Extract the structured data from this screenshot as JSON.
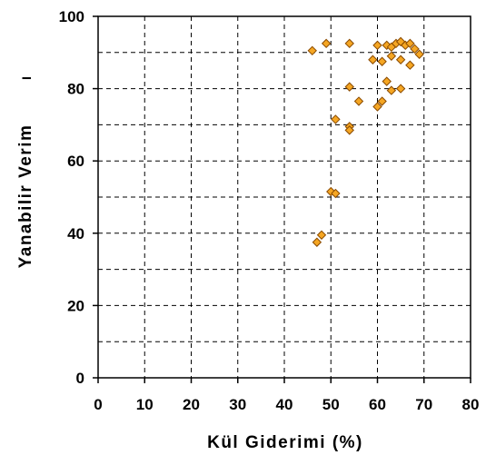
{
  "chart_data": {
    "type": "scatter",
    "title": "",
    "xlabel": "Kül Giderimi (%)",
    "ylabel": "Yanabilir Verim",
    "ylabel_suffix": "I",
    "xlim": [
      0,
      80
    ],
    "ylim": [
      0,
      100
    ],
    "x_ticks": [
      0,
      10,
      20,
      30,
      40,
      50,
      60,
      70,
      80
    ],
    "y_ticks": [
      0,
      20,
      40,
      60,
      80,
      100
    ],
    "x_grid": [
      10,
      20,
      30,
      40,
      50,
      60,
      70
    ],
    "y_grid": [
      10,
      20,
      30,
      40,
      50,
      60,
      70,
      80,
      90
    ],
    "grid": true,
    "legend": "none",
    "marker_color": "#f5a623",
    "marker_edge_color": "#8a4a00",
    "points": [
      {
        "x": 46,
        "y": 90.5
      },
      {
        "x": 49,
        "y": 92.5
      },
      {
        "x": 54,
        "y": 92.5
      },
      {
        "x": 60,
        "y": 92
      },
      {
        "x": 62,
        "y": 92
      },
      {
        "x": 63,
        "y": 91.5
      },
      {
        "x": 64,
        "y": 92.5
      },
      {
        "x": 65,
        "y": 93
      },
      {
        "x": 66,
        "y": 92
      },
      {
        "x": 67,
        "y": 92.5
      },
      {
        "x": 68,
        "y": 91
      },
      {
        "x": 69,
        "y": 89.5
      },
      {
        "x": 59,
        "y": 88
      },
      {
        "x": 61,
        "y": 87.5
      },
      {
        "x": 63,
        "y": 89
      },
      {
        "x": 65,
        "y": 88
      },
      {
        "x": 67,
        "y": 86.5
      },
      {
        "x": 62,
        "y": 82
      },
      {
        "x": 54,
        "y": 80.5
      },
      {
        "x": 63,
        "y": 79.5
      },
      {
        "x": 65,
        "y": 80
      },
      {
        "x": 56,
        "y": 76.5
      },
      {
        "x": 61,
        "y": 76.5
      },
      {
        "x": 60,
        "y": 75
      },
      {
        "x": 51,
        "y": 71.5
      },
      {
        "x": 54,
        "y": 69.5
      },
      {
        "x": 54,
        "y": 68.5
      },
      {
        "x": 50,
        "y": 51.5
      },
      {
        "x": 51,
        "y": 51
      },
      {
        "x": 48,
        "y": 39.5
      },
      {
        "x": 47,
        "y": 37.5
      }
    ]
  }
}
